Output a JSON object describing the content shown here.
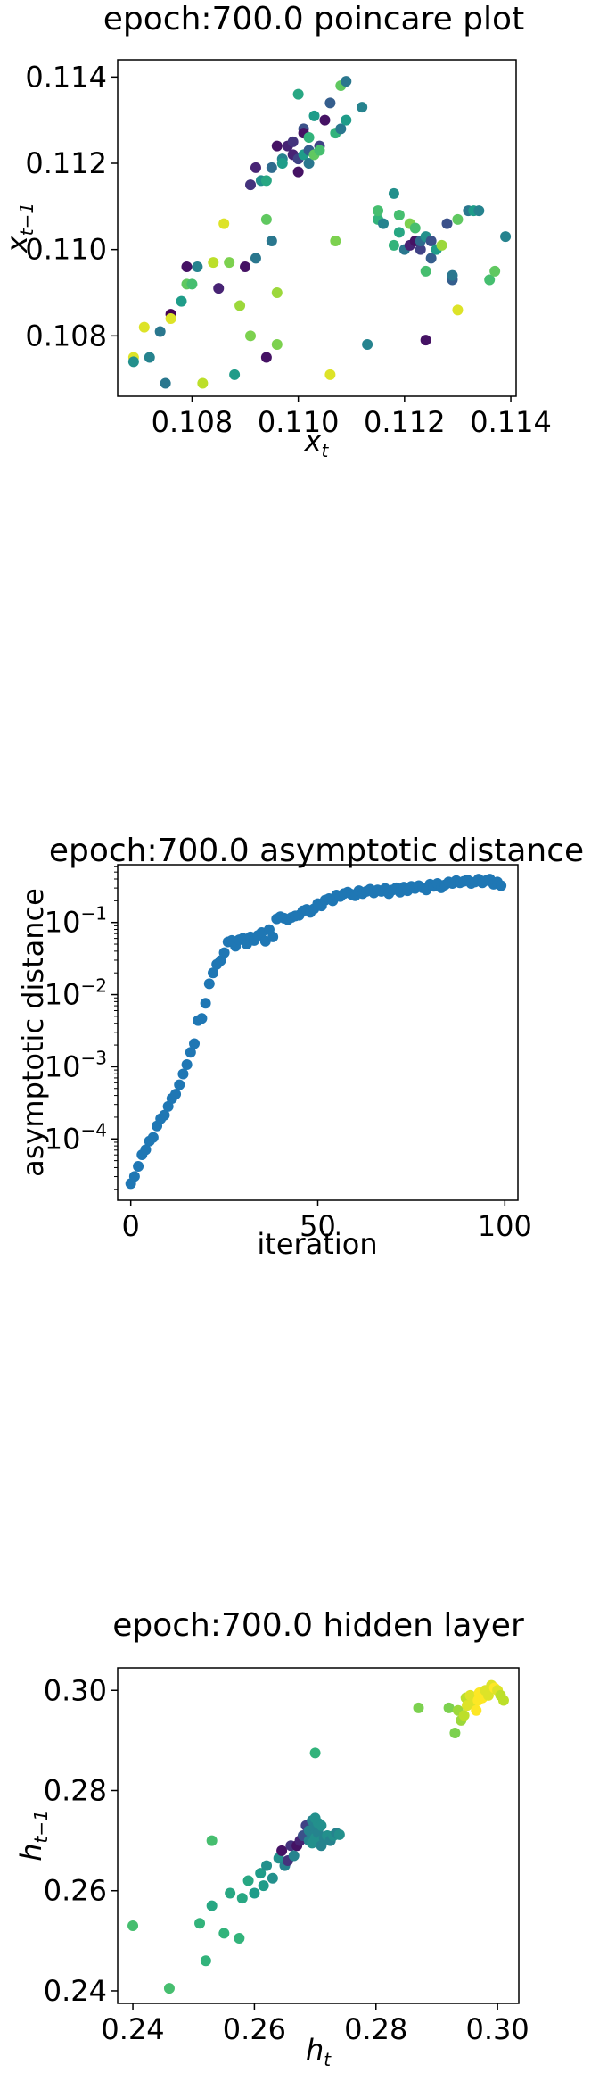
{
  "chart_data": [
    {
      "type": "scatter",
      "title": "epoch:700.0 poincare plot",
      "xlabel": "x",
      "xlabel_sub": "t",
      "ylabel": "x",
      "ylabel_sub": "t−1",
      "xlim": [
        0.1066,
        0.1141
      ],
      "ylim": [
        0.1066,
        0.1144
      ],
      "xticks": [
        0.108,
        0.11,
        0.112,
        0.114
      ],
      "xtick_labels": [
        "0.108",
        "0.110",
        "0.112",
        "0.114"
      ],
      "yticks": [
        0.108,
        0.11,
        0.112,
        0.114
      ],
      "ytick_labels": [
        "0.108",
        "0.110",
        "0.112",
        "0.114"
      ],
      "grid": false,
      "colormap": "viridis",
      "points": [
        [
          0.1069,
          0.1075,
          0.95
        ],
        [
          0.1069,
          0.1074,
          0.5
        ],
        [
          0.1071,
          0.1082,
          0.95
        ],
        [
          0.1072,
          0.1075,
          0.45
        ],
        [
          0.1074,
          0.1081,
          0.4
        ],
        [
          0.1075,
          0.1069,
          0.4
        ],
        [
          0.1076,
          0.1085,
          0.0
        ],
        [
          0.1076,
          0.1084,
          0.95
        ],
        [
          0.1078,
          0.1088,
          0.55
        ],
        [
          0.1079,
          0.1092,
          0.75
        ],
        [
          0.1079,
          0.1096,
          0.05
        ],
        [
          0.108,
          0.1092,
          0.7
        ],
        [
          0.1081,
          0.1096,
          0.45
        ],
        [
          0.1082,
          0.1069,
          0.9
        ],
        [
          0.1084,
          0.1097,
          0.9
        ],
        [
          0.1085,
          0.1091,
          0.1
        ],
        [
          0.1086,
          0.1106,
          0.95
        ],
        [
          0.1087,
          0.1097,
          0.8
        ],
        [
          0.1088,
          0.1071,
          0.55
        ],
        [
          0.1089,
          0.1087,
          0.85
        ],
        [
          0.109,
          0.1096,
          0.05
        ],
        [
          0.1091,
          0.108,
          0.8
        ],
        [
          0.1091,
          0.1115,
          0.15
        ],
        [
          0.1092,
          0.1098,
          0.4
        ],
        [
          0.1092,
          0.1119,
          0.1
        ],
        [
          0.1093,
          0.1116,
          0.5
        ],
        [
          0.1094,
          0.1116,
          0.6
        ],
        [
          0.1094,
          0.1107,
          0.75
        ],
        [
          0.1094,
          0.1075,
          0.05
        ],
        [
          0.1095,
          0.1102,
          0.4
        ],
        [
          0.1095,
          0.1119,
          0.35
        ],
        [
          0.1096,
          0.109,
          0.85
        ],
        [
          0.1096,
          0.1078,
          0.8
        ],
        [
          0.1096,
          0.1124,
          0.05
        ],
        [
          0.1097,
          0.1121,
          0.45
        ],
        [
          0.1097,
          0.112,
          0.55
        ],
        [
          0.1098,
          0.1124,
          0.1
        ],
        [
          0.1099,
          0.1122,
          0.1
        ],
        [
          0.1099,
          0.1125,
          0.15
        ],
        [
          0.11,
          0.1136,
          0.6
        ],
        [
          0.11,
          0.1121,
          0.2
        ],
        [
          0.11,
          0.1118,
          0.05
        ],
        [
          0.1101,
          0.1122,
          0.55
        ],
        [
          0.1101,
          0.1128,
          0.25
        ],
        [
          0.1101,
          0.1127,
          0.05
        ],
        [
          0.1102,
          0.112,
          0.4
        ],
        [
          0.1102,
          0.1126,
          0.65
        ],
        [
          0.1102,
          0.1123,
          0.3
        ],
        [
          0.1103,
          0.1122,
          0.75
        ],
        [
          0.1103,
          0.1131,
          0.55
        ],
        [
          0.1104,
          0.1124,
          0.2
        ],
        [
          0.1104,
          0.1123,
          0.7
        ],
        [
          0.1105,
          0.113,
          0.05
        ],
        [
          0.1106,
          0.1071,
          0.95
        ],
        [
          0.1106,
          0.1134,
          0.3
        ],
        [
          0.1107,
          0.1102,
          0.8
        ],
        [
          0.1107,
          0.1127,
          0.65
        ],
        [
          0.1108,
          0.1138,
          0.75
        ],
        [
          0.1108,
          0.1128,
          0.4
        ],
        [
          0.1109,
          0.113,
          0.55
        ],
        [
          0.1109,
          0.1139,
          0.4
        ],
        [
          0.1112,
          0.1133,
          0.45
        ],
        [
          0.1113,
          0.1078,
          0.45
        ],
        [
          0.1115,
          0.1107,
          0.65
        ],
        [
          0.1115,
          0.1109,
          0.7
        ],
        [
          0.1116,
          0.1106,
          0.45
        ],
        [
          0.1118,
          0.1113,
          0.5
        ],
        [
          0.1118,
          0.1101,
          0.65
        ],
        [
          0.1119,
          0.1108,
          0.7
        ],
        [
          0.1119,
          0.1104,
          0.6
        ],
        [
          0.112,
          0.11,
          0.4
        ],
        [
          0.1121,
          0.1106,
          0.8
        ],
        [
          0.1121,
          0.1101,
          0.1
        ],
        [
          0.1122,
          0.1102,
          0.05
        ],
        [
          0.1122,
          0.1105,
          0.7
        ],
        [
          0.1123,
          0.11,
          0.2
        ],
        [
          0.1123,
          0.1102,
          0.35
        ],
        [
          0.1124,
          0.1095,
          0.7
        ],
        [
          0.1124,
          0.1079,
          0.05
        ],
        [
          0.1124,
          0.1103,
          0.5
        ],
        [
          0.1125,
          0.1102,
          0.25
        ],
        [
          0.1125,
          0.1098,
          0.3
        ],
        [
          0.1126,
          0.11,
          0.55
        ],
        [
          0.1127,
          0.1101,
          0.85
        ],
        [
          0.1128,
          0.1106,
          0.25
        ],
        [
          0.1129,
          0.1093,
          0.3
        ],
        [
          0.1129,
          0.1094,
          0.4
        ],
        [
          0.113,
          0.1086,
          0.95
        ],
        [
          0.113,
          0.1107,
          0.75
        ],
        [
          0.1132,
          0.1109,
          0.4
        ],
        [
          0.1133,
          0.1109,
          0.55
        ],
        [
          0.1134,
          0.1109,
          0.45
        ],
        [
          0.1136,
          0.1093,
          0.7
        ],
        [
          0.1137,
          0.1095,
          0.75
        ],
        [
          0.1139,
          0.1103,
          0.45
        ]
      ]
    },
    {
      "type": "scatter",
      "title": "epoch:700.0 asymptotic distance",
      "xlabel": "iteration",
      "ylabel": "asymptotic distance",
      "xscale": "linear",
      "yscale": "log",
      "xlim": [
        -3.5,
        103.5
      ],
      "ylim_log10": [
        -4.85,
        -0.2
      ],
      "xticks": [
        0,
        50,
        100
      ],
      "xtick_labels": [
        "0",
        "50",
        "100"
      ],
      "yticks_log10": [
        -4,
        -3,
        -2,
        -1
      ],
      "ytick_labels": [
        {
          "base": "10",
          "exp": "−4"
        },
        {
          "base": "10",
          "exp": "−3"
        },
        {
          "base": "10",
          "exp": "−2"
        },
        {
          "base": "10",
          "exp": "−1"
        }
      ],
      "grid": false,
      "color": "#1f77b4",
      "x": [
        0,
        1,
        2,
        3,
        4,
        5,
        6,
        7,
        8,
        9,
        10,
        11,
        12,
        13,
        14,
        15,
        16,
        17,
        18,
        19,
        20,
        21,
        22,
        23,
        24,
        25,
        26,
        27,
        28,
        29,
        30,
        31,
        32,
        33,
        34,
        35,
        36,
        37,
        38,
        39,
        40,
        41,
        42,
        43,
        44,
        45,
        46,
        47,
        48,
        49,
        50,
        51,
        52,
        53,
        54,
        55,
        56,
        57,
        58,
        59,
        60,
        61,
        62,
        63,
        64,
        65,
        66,
        67,
        68,
        69,
        70,
        71,
        72,
        73,
        74,
        75,
        76,
        77,
        78,
        79,
        80,
        81,
        82,
        83,
        84,
        85,
        86,
        87,
        88,
        89,
        90,
        91,
        92,
        93,
        94,
        95,
        96,
        97,
        98,
        99
      ],
      "y_log10": [
        -4.62,
        -4.52,
        -4.38,
        -4.22,
        -4.15,
        -4.03,
        -3.98,
        -3.82,
        -3.72,
        -3.67,
        -3.55,
        -3.44,
        -3.38,
        -3.25,
        -3.1,
        -2.97,
        -2.8,
        -2.68,
        -2.36,
        -2.33,
        -2.12,
        -1.85,
        -1.7,
        -1.58,
        -1.53,
        -1.42,
        -1.27,
        -1.25,
        -1.33,
        -1.24,
        -1.22,
        -1.3,
        -1.2,
        -1.25,
        -1.18,
        -1.14,
        -1.26,
        -1.1,
        -1.2,
        -0.95,
        -0.92,
        -0.94,
        -0.96,
        -0.93,
        -0.91,
        -0.9,
        -0.84,
        -0.82,
        -0.86,
        -0.81,
        -0.74,
        -0.77,
        -0.69,
        -0.67,
        -0.7,
        -0.62,
        -0.64,
        -0.6,
        -0.58,
        -0.61,
        -0.63,
        -0.56,
        -0.6,
        -0.57,
        -0.54,
        -0.59,
        -0.55,
        -0.57,
        -0.53,
        -0.6,
        -0.55,
        -0.52,
        -0.58,
        -0.51,
        -0.56,
        -0.5,
        -0.53,
        -0.49,
        -0.52,
        -0.55,
        -0.47,
        -0.5,
        -0.46,
        -0.52,
        -0.48,
        -0.44,
        -0.46,
        -0.42,
        -0.45,
        -0.43,
        -0.41,
        -0.46,
        -0.44,
        -0.4,
        -0.45,
        -0.42,
        -0.4,
        -0.47,
        -0.44,
        -0.49
      ]
    },
    {
      "type": "scatter",
      "title": "epoch:700.0 hidden layer",
      "xlabel": "h",
      "xlabel_sub": "t",
      "ylabel": "h",
      "ylabel_sub": "t−1",
      "xlim": [
        0.2375,
        0.3035
      ],
      "ylim": [
        0.2375,
        0.3045
      ],
      "xticks": [
        0.24,
        0.26,
        0.28,
        0.3
      ],
      "xtick_labels": [
        "0.24",
        "0.26",
        "0.28",
        "0.30"
      ],
      "yticks": [
        0.24,
        0.26,
        0.28,
        0.3
      ],
      "ytick_labels": [
        "0.24",
        "0.26",
        "0.28",
        "0.30"
      ],
      "grid": false,
      "colormap": "viridis",
      "points": [
        [
          0.24,
          0.253,
          0.7
        ],
        [
          0.246,
          0.2405,
          0.7
        ],
        [
          0.251,
          0.2535,
          0.65
        ],
        [
          0.252,
          0.246,
          0.65
        ],
        [
          0.253,
          0.27,
          0.7
        ],
        [
          0.253,
          0.257,
          0.6
        ],
        [
          0.255,
          0.2515,
          0.65
        ],
        [
          0.256,
          0.2595,
          0.6
        ],
        [
          0.2575,
          0.2505,
          0.65
        ],
        [
          0.258,
          0.2585,
          0.6
        ],
        [
          0.259,
          0.262,
          0.6
        ],
        [
          0.26,
          0.2595,
          0.55
        ],
        [
          0.261,
          0.2635,
          0.55
        ],
        [
          0.2615,
          0.261,
          0.55
        ],
        [
          0.262,
          0.265,
          0.5
        ],
        [
          0.263,
          0.2625,
          0.5
        ],
        [
          0.264,
          0.2665,
          0.5
        ],
        [
          0.2645,
          0.268,
          0.05
        ],
        [
          0.265,
          0.265,
          0.45
        ],
        [
          0.2655,
          0.266,
          0.15
        ],
        [
          0.266,
          0.269,
          0.15
        ],
        [
          0.2665,
          0.267,
          0.45
        ],
        [
          0.267,
          0.269,
          0.05
        ],
        [
          0.2675,
          0.27,
          0.1
        ],
        [
          0.268,
          0.271,
          0.25
        ],
        [
          0.2685,
          0.273,
          0.2
        ],
        [
          0.269,
          0.27,
          0.45
        ],
        [
          0.269,
          0.272,
          0.45
        ],
        [
          0.2695,
          0.274,
          0.45
        ],
        [
          0.2695,
          0.2695,
          0.5
        ],
        [
          0.27,
          0.2725,
          0.45
        ],
        [
          0.27,
          0.2745,
          0.5
        ],
        [
          0.27,
          0.2875,
          0.65
        ],
        [
          0.27,
          0.2705,
          0.5
        ],
        [
          0.2705,
          0.2715,
          0.45
        ],
        [
          0.2705,
          0.2735,
          0.5
        ],
        [
          0.271,
          0.27,
          0.5
        ],
        [
          0.271,
          0.273,
          0.5
        ],
        [
          0.271,
          0.269,
          0.45
        ],
        [
          0.2715,
          0.2705,
          0.45
        ],
        [
          0.272,
          0.271,
          0.5
        ],
        [
          0.2725,
          0.27,
          0.45
        ],
        [
          0.273,
          0.271,
          0.5
        ],
        [
          0.2735,
          0.2715,
          0.45
        ],
        [
          0.274,
          0.2712,
          0.5
        ],
        [
          0.287,
          0.2965,
          0.8
        ],
        [
          0.292,
          0.2965,
          0.8
        ],
        [
          0.293,
          0.2915,
          0.8
        ],
        [
          0.2935,
          0.296,
          0.85
        ],
        [
          0.294,
          0.294,
          0.85
        ],
        [
          0.2945,
          0.295,
          0.9
        ],
        [
          0.2948,
          0.2985,
          0.9
        ],
        [
          0.295,
          0.297,
          0.95
        ],
        [
          0.2955,
          0.299,
          0.95
        ],
        [
          0.296,
          0.2975,
          0.95
        ],
        [
          0.2965,
          0.296,
          1.0
        ],
        [
          0.2968,
          0.298,
          1.0
        ],
        [
          0.297,
          0.2995,
          1.0
        ],
        [
          0.2975,
          0.2985,
          1.0
        ],
        [
          0.298,
          0.3,
          0.95
        ],
        [
          0.2985,
          0.299,
          0.95
        ],
        [
          0.299,
          0.301,
          0.95
        ],
        [
          0.2995,
          0.3005,
          1.0
        ],
        [
          0.3,
          0.3,
          0.95
        ],
        [
          0.3005,
          0.299,
          0.9
        ],
        [
          0.301,
          0.298,
          0.9
        ]
      ]
    }
  ]
}
